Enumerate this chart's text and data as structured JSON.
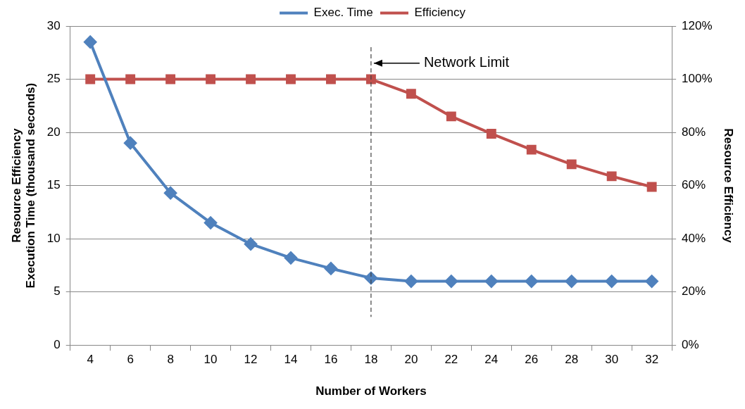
{
  "chart_data": {
    "type": "line",
    "xlabel": "Number of Workers",
    "ylabel": "Resource Efficiency\nExecution Time (thousand seconds)",
    "y2label": "Resource Efficiency",
    "categories": [
      "4",
      "6",
      "8",
      "10",
      "12",
      "14",
      "16",
      "18",
      "20",
      "22",
      "24",
      "26",
      "28",
      "30",
      "32"
    ],
    "series": [
      {
        "name": "Exec. Time",
        "color": "#4f81bd",
        "marker": "diamond",
        "values": [
          28.5,
          19,
          14.3,
          11.5,
          9.5,
          8.2,
          7.2,
          6.3,
          6,
          6,
          6,
          6,
          6,
          6,
          6
        ]
      },
      {
        "name": "Efficiency",
        "color": "#c0504d",
        "marker": "square",
        "axis": "y2",
        "values": [
          100,
          100,
          100,
          100,
          100,
          100,
          100,
          100,
          94.5,
          86,
          79.5,
          73.5,
          68,
          63.5,
          59.5
        ]
      }
    ],
    "ylim": [
      0,
      30
    ],
    "yticks": [
      0,
      5,
      10,
      15,
      20,
      25,
      30
    ],
    "y2lim": [
      0,
      120
    ],
    "y2ticks": [
      {
        "value": 0,
        "label": "0%"
      },
      {
        "value": 20,
        "label": "20%"
      },
      {
        "value": 40,
        "label": "40%"
      },
      {
        "value": 60,
        "label": "60%"
      },
      {
        "value": 80,
        "label": "80%"
      },
      {
        "value": 100,
        "label": "100%"
      },
      {
        "value": 120,
        "label": "120%"
      }
    ],
    "ref_lines": [
      {
        "axis": "x",
        "value": "18",
        "color": "#404040",
        "line_style": "dashed"
      }
    ],
    "annotations": [
      {
        "text": "Network Limit",
        "x": "18",
        "y": 26.5
      }
    ],
    "grid": "y",
    "legend": "top",
    "line_style": "solid"
  }
}
